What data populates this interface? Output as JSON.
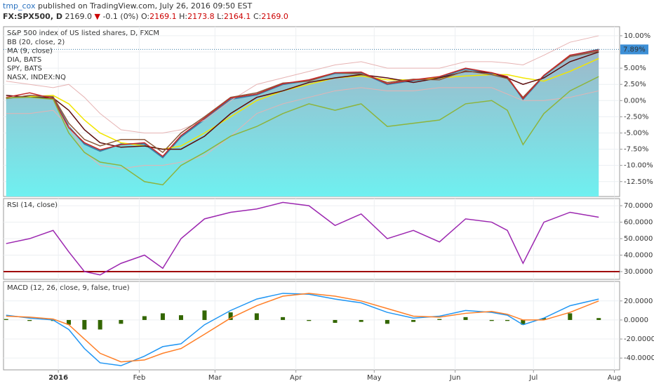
{
  "header": {
    "author": "tmp_cox",
    "published": "published on TradingView.com, July 26, 2016 09:50 EST",
    "symbol": "FX:SPX500, D",
    "last": "2169.0",
    "direction": "▼",
    "change": "-0.1 (0%)",
    "open_label": "O:",
    "open": "2169.1",
    "high_label": "H:",
    "high": "2173.8",
    "low_label": "L:",
    "low": "2164.1",
    "close_label": "C:",
    "close": "2169.0"
  },
  "x_axis": {
    "x": [
      -20,
      -11,
      -2,
      4,
      10,
      16,
      24,
      33,
      40,
      47,
      56,
      66,
      76,
      86,
      96,
      106,
      116,
      126,
      136,
      146,
      156,
      166,
      172,
      178,
      186,
      196,
      207
    ],
    "xlim": [
      -21,
      215
    ],
    "xticks": [
      {
        "value": 0,
        "label": "2016"
      },
      {
        "value": 31,
        "label": "Feb"
      },
      {
        "value": 60,
        "label": "Mar"
      },
      {
        "value": 91,
        "label": "Apr"
      },
      {
        "value": 121,
        "label": "May"
      },
      {
        "value": 152,
        "label": "Jun"
      },
      {
        "value": 182,
        "label": "Jul"
      },
      {
        "value": 213,
        "label": "Aug"
      }
    ]
  },
  "chart_data": [
    {
      "type": "line",
      "title": "S&P 500 index of US listed shares, D, FXCM",
      "watermark": "SPX500, D",
      "watermark_subtitle": "S&P 500 index of US listed shares",
      "ylim": [
        -14.8,
        11.4
      ],
      "yticks": [
        {
          "value": 10,
          "label": "10.00%"
        },
        {
          "value": 7.5,
          "label": "7.50%"
        },
        {
          "value": 5,
          "label": "5.00%"
        },
        {
          "value": 2.5,
          "label": "2.50%"
        },
        {
          "value": 0,
          "label": "0.00%"
        },
        {
          "value": -2.5,
          "label": "-2.50%"
        },
        {
          "value": -5,
          "label": "-5.00%"
        },
        {
          "value": -7.5,
          "label": "-7.50%"
        },
        {
          "value": -10,
          "label": "-10.00%"
        },
        {
          "value": -12.5,
          "label": "-12.50%"
        }
      ],
      "last_label": {
        "value": 7.89,
        "label": "7.89%"
      },
      "series": [
        {
          "style": "area",
          "color": "#3d7ea6",
          "values": [
            0.4,
            0.6,
            0.4,
            -4,
            -6.7,
            -7.8,
            -6.7,
            -6.7,
            -8.8,
            -5.6,
            -2.9,
            0.2,
            0.9,
            2.5,
            3.1,
            4.2,
            4.3,
            2.5,
            3.1,
            3.6,
            4.9,
            4.2,
            3.6,
            0.2,
            3.8,
            6.9,
            7.9
          ]
        },
        {
          "style": "line",
          "name": "BB (20, close, 2)",
          "color": "#f2e600",
          "values": [
            0.4,
            0.6,
            0.8,
            -0.5,
            -3,
            -5,
            -6.5,
            -7,
            -7.5,
            -7,
            -5,
            -2.5,
            0,
            1.5,
            2.5,
            3.5,
            3.8,
            3.2,
            3.2,
            3.5,
            3.8,
            4,
            4,
            3.5,
            3,
            4.5,
            6.5
          ]
        },
        {
          "style": "band",
          "color": "#e6b3b3",
          "values": [
            3,
            2.5,
            2,
            2.5,
            0.5,
            -2,
            -4.5,
            -5,
            -5,
            -4.5,
            -3,
            0,
            2.5,
            3.5,
            4.5,
            5.5,
            6,
            5,
            5,
            5,
            6,
            6,
            5.8,
            5.5,
            7,
            9,
            10
          ]
        },
        {
          "style": "band",
          "color": "#e6b3b3",
          "values": [
            -2,
            -2,
            -1.5,
            -4,
            -8,
            -10,
            -10.5,
            -10,
            -10,
            -9.5,
            -8.5,
            -5.5,
            -2,
            -0.5,
            0.5,
            1.5,
            2,
            1.5,
            1.5,
            2,
            2,
            2,
            1,
            0,
            0,
            0.5,
            1.5
          ]
        },
        {
          "style": "line",
          "name": "MA (9, close)",
          "color": "#5a0b0b",
          "values": [
            0.8,
            0.5,
            0.4,
            -1.5,
            -4.5,
            -6.5,
            -7.2,
            -7,
            -7.5,
            -7.5,
            -5.5,
            -2,
            0.5,
            1.5,
            2.8,
            3.5,
            4,
            3.5,
            2.8,
            3.5,
            4.5,
            4.3,
            3.5,
            2.5,
            3.5,
            6,
            7.5
          ]
        },
        {
          "style": "line",
          "name": "DIA, BATS",
          "color": "#8d5a3c",
          "values": [
            0.3,
            0.8,
            0.6,
            -3.5,
            -6,
            -7,
            -6,
            -6,
            -8,
            -5,
            -2.5,
            0.5,
            1.2,
            2.7,
            3,
            4.3,
            4.1,
            2.8,
            3.3,
            3.2,
            4.6,
            4,
            3.4,
            0.5,
            3.9,
            6.8,
            7.6
          ]
        },
        {
          "style": "line",
          "name": "SPY, BATS",
          "color": "#c62828",
          "values": [
            0.5,
            1.2,
            0.3,
            -4.2,
            -6.5,
            -7.6,
            -6.8,
            -6.5,
            -8.6,
            -5.4,
            -2.7,
            0.4,
            1,
            2.6,
            3.2,
            4.3,
            4.4,
            2.6,
            3.2,
            3.7,
            5,
            4.3,
            3.7,
            0.3,
            3.9,
            7,
            7.8
          ]
        },
        {
          "style": "line",
          "name": "NASX, INDEX:NQ",
          "color": "#8db43c",
          "values": [
            0.4,
            0.5,
            0.2,
            -5,
            -8,
            -9.5,
            -10,
            -12.5,
            -13,
            -10,
            -8,
            -5.5,
            -4,
            -2,
            -0.5,
            -1.5,
            -0.5,
            -4,
            -3.5,
            -3,
            -0.5,
            0,
            -1.5,
            -6.8,
            -2,
            1.5,
            3.7
          ]
        }
      ]
    },
    {
      "type": "line",
      "title": "RSI (14, close)",
      "ylim": [
        25.3,
        74.3
      ],
      "yticks": [
        {
          "value": 70,
          "label": "70.0000"
        },
        {
          "value": 60,
          "label": "60.0000"
        },
        {
          "value": 50,
          "label": "50.0000"
        },
        {
          "value": 40,
          "label": "40.0000"
        },
        {
          "value": 30,
          "label": "30.0000"
        }
      ],
      "level": 30,
      "level_color": "#a00000",
      "series": [
        {
          "style": "line",
          "color": "#9c27b0",
          "values": [
            47,
            50,
            55,
            42,
            30,
            28,
            35,
            40,
            32,
            50,
            62,
            66,
            68,
            72,
            70,
            58,
            65,
            50,
            55,
            48,
            62,
            60,
            55,
            35,
            60,
            66,
            63
          ]
        }
      ]
    },
    {
      "type": "line",
      "title": "MACD (12, 26, close, 9, false, true)",
      "ylim": [
        -52.4,
        40.5
      ],
      "yticks": [
        {
          "value": 20,
          "label": "20.0000"
        },
        {
          "value": 0,
          "label": "0.0000"
        },
        {
          "value": -20,
          "label": "-20.0000"
        },
        {
          "value": -40,
          "label": "-40.0000"
        }
      ],
      "series": [
        {
          "style": "bars",
          "color": "#336600",
          "values": [
            1,
            -1,
            -1,
            -5,
            -10,
            -10,
            -4,
            4,
            7,
            5,
            10,
            8,
            7,
            3,
            -1,
            -3,
            -2,
            -4,
            -2,
            1,
            3,
            -1,
            -1,
            -5,
            2,
            7,
            2
          ]
        },
        {
          "style": "line",
          "color": "#2196f3",
          "values": [
            5,
            2,
            0,
            -10,
            -30,
            -45,
            -48,
            -38,
            -28,
            -25,
            -5,
            10,
            22,
            28,
            27,
            22,
            18,
            8,
            2,
            4,
            10,
            8,
            5,
            -5,
            2,
            15,
            22
          ]
        },
        {
          "style": "line",
          "color": "#ff7f27",
          "values": [
            4,
            3,
            1,
            -5,
            -20,
            -35,
            -44,
            -42,
            -35,
            -30,
            -15,
            2,
            15,
            25,
            28,
            25,
            20,
            12,
            4,
            3,
            7,
            9,
            6,
            0,
            0,
            8,
            20
          ]
        }
      ]
    }
  ]
}
